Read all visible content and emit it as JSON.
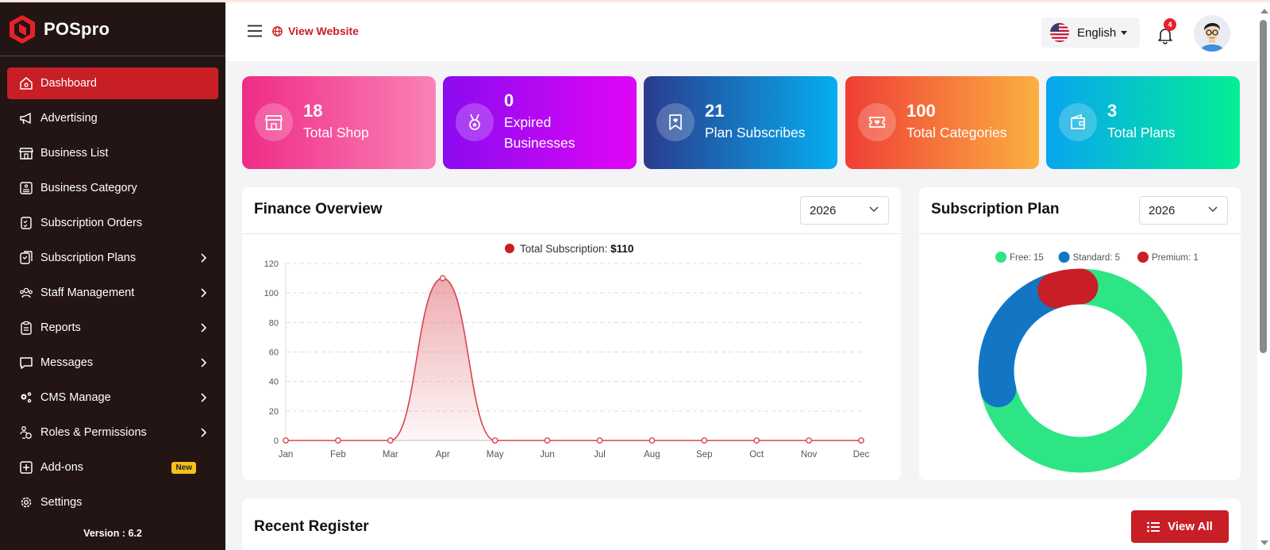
{
  "brand": {
    "name": "POSpro",
    "accent": "#c81e26",
    "sidebar_bg": "#221513"
  },
  "sidebar": {
    "items": [
      {
        "label": "Dashboard",
        "icon": "home-icon",
        "active": true
      },
      {
        "label": "Advertising",
        "icon": "megaphone-icon"
      },
      {
        "label": "Business List",
        "icon": "store-icon"
      },
      {
        "label": "Business Category",
        "icon": "category-list-icon"
      },
      {
        "label": "Subscription Orders",
        "icon": "order-checklist-icon"
      },
      {
        "label": "Subscription Plans",
        "icon": "plans-icon",
        "has_submenu": true
      },
      {
        "label": "Staff Management",
        "icon": "users-icon",
        "has_submenu": true
      },
      {
        "label": "Reports",
        "icon": "clipboard-icon",
        "has_submenu": true
      },
      {
        "label": "Messages",
        "icon": "chat-icon",
        "has_submenu": true
      },
      {
        "label": "CMS Manage",
        "icon": "gears-icon",
        "has_submenu": true
      },
      {
        "label": "Roles & Permissions",
        "icon": "roles-icon",
        "has_submenu": true
      },
      {
        "label": "Add-ons",
        "icon": "plus-square-icon",
        "badge": "New"
      },
      {
        "label": "Settings",
        "icon": "gear-icon"
      }
    ],
    "version": "Version : 6.2"
  },
  "header": {
    "view_website": "View Website",
    "language": "English",
    "notification_count": "4"
  },
  "stats": [
    {
      "value": "18",
      "label": "Total Shop",
      "icon": "shop-icon"
    },
    {
      "value": "0",
      "label": "Expired Businesses",
      "icon": "medal-icon"
    },
    {
      "value": "21",
      "label": "Plan Subscribes",
      "icon": "bookmark-heart-icon"
    },
    {
      "value": "100",
      "label": "Total Categories",
      "icon": "ticket-heart-icon"
    },
    {
      "value": "3",
      "label": "Total Plans",
      "icon": "wallet-icon"
    }
  ],
  "finance": {
    "title": "Finance Overview",
    "year": "2026",
    "legend_label": "Total Subscription: ",
    "legend_value": "$110"
  },
  "subscription": {
    "title": "Subscription Plan",
    "year": "2026"
  },
  "recent": {
    "title": "Recent Register",
    "view_all": "View All"
  },
  "chart_data": [
    {
      "type": "area",
      "title": "",
      "categories": [
        "Jan",
        "Feb",
        "Mar",
        "Apr",
        "May",
        "Jun",
        "Jul",
        "Aug",
        "Sep",
        "Oct",
        "Nov",
        "Dec"
      ],
      "series": [
        {
          "name": "Total Subscription",
          "values": [
            0,
            0,
            0,
            110,
            0,
            0,
            0,
            0,
            0,
            0,
            0,
            0
          ]
        }
      ],
      "ylim": [
        0,
        120
      ],
      "yticks": [
        0,
        20,
        40,
        60,
        80,
        100,
        120
      ],
      "grid": true,
      "color": "#d9434e",
      "legend_position": "top"
    },
    {
      "type": "pie",
      "variant": "doughnut",
      "slices": [
        {
          "label": "Free",
          "value": 15,
          "color": "#2ee585"
        },
        {
          "label": "Standard",
          "value": 5,
          "color": "#1376c4"
        },
        {
          "label": "Premium",
          "value": 1,
          "color": "#c81e26"
        }
      ],
      "legend_position": "top"
    }
  ]
}
